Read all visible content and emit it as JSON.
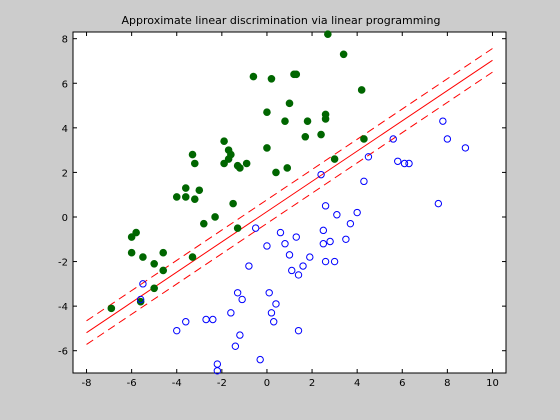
{
  "chart_data": {
    "type": "scatter",
    "title": "Approximate linear discrimination via linear programming",
    "xlabel": "",
    "ylabel": "",
    "xlim": [
      -8.6,
      10.6
    ],
    "ylim": [
      -7.0,
      8.3
    ],
    "xticks": [
      -8,
      -6,
      -4,
      -2,
      0,
      2,
      4,
      6,
      8,
      10
    ],
    "yticks": [
      -6,
      -4,
      -2,
      0,
      2,
      4,
      6,
      8
    ],
    "xtick_labels": [
      "-8",
      "-6",
      "-4",
      "-2",
      "0",
      "2",
      "4",
      "6",
      "8",
      "10"
    ],
    "ytick_labels": [
      "-6",
      "-4",
      "-2",
      "0",
      "2",
      "4",
      "6",
      "8"
    ],
    "grid": false,
    "legend": "none",
    "series": [
      {
        "marker": "filled-circle",
        "color": "#006600",
        "points": [
          [
            -6.9,
            -4.1
          ],
          [
            -5.6,
            -3.8
          ],
          [
            -5.0,
            -3.2
          ],
          [
            -6.0,
            -0.9
          ],
          [
            -5.8,
            -0.7
          ],
          [
            -6.0,
            -1.6
          ],
          [
            -5.5,
            -1.8
          ],
          [
            -5.0,
            -2.1
          ],
          [
            -4.6,
            -1.6
          ],
          [
            -4.6,
            -2.4
          ],
          [
            -4.0,
            0.9
          ],
          [
            -3.6,
            0.9
          ],
          [
            -3.6,
            1.3
          ],
          [
            -3.2,
            0.8
          ],
          [
            -3.3,
            2.8
          ],
          [
            -3.2,
            2.4
          ],
          [
            -3.0,
            1.2
          ],
          [
            -2.8,
            -0.3
          ],
          [
            -3.3,
            -1.8
          ],
          [
            -2.3,
            0.0
          ],
          [
            -1.9,
            2.4
          ],
          [
            -1.9,
            3.4
          ],
          [
            -1.7,
            2.6
          ],
          [
            -1.7,
            3.0
          ],
          [
            -1.6,
            2.8
          ],
          [
            -1.5,
            0.6
          ],
          [
            -1.3,
            2.3
          ],
          [
            -1.2,
            2.2
          ],
          [
            -1.3,
            -0.5
          ],
          [
            -0.9,
            2.4
          ],
          [
            -0.6,
            6.3
          ],
          [
            0.0,
            3.1
          ],
          [
            0.0,
            4.7
          ],
          [
            0.2,
            6.2
          ],
          [
            0.4,
            2.0
          ],
          [
            0.8,
            4.3
          ],
          [
            0.9,
            2.2
          ],
          [
            1.0,
            5.1
          ],
          [
            1.2,
            6.4
          ],
          [
            1.3,
            6.4
          ],
          [
            1.7,
            3.6
          ],
          [
            1.8,
            4.3
          ],
          [
            2.4,
            3.7
          ],
          [
            2.6,
            4.6
          ],
          [
            2.6,
            4.4
          ],
          [
            3.0,
            2.6
          ],
          [
            2.7,
            8.2
          ],
          [
            3.4,
            7.3
          ],
          [
            4.2,
            5.7
          ],
          [
            4.3,
            3.5
          ]
        ]
      },
      {
        "marker": "open-circle",
        "color": "#0000ff",
        "points": [
          [
            -5.6,
            -3.7
          ],
          [
            -5.5,
            -3.0
          ],
          [
            -4.0,
            -5.1
          ],
          [
            -3.6,
            -4.7
          ],
          [
            -2.7,
            -4.6
          ],
          [
            -2.4,
            -4.6
          ],
          [
            -2.2,
            -6.6
          ],
          [
            -2.2,
            -6.9
          ],
          [
            -1.6,
            -4.3
          ],
          [
            -1.4,
            -5.8
          ],
          [
            -1.3,
            -3.4
          ],
          [
            -1.2,
            -5.3
          ],
          [
            -1.1,
            -3.7
          ],
          [
            -0.8,
            -2.2
          ],
          [
            -0.5,
            -0.5
          ],
          [
            -0.3,
            -6.4
          ],
          [
            0.0,
            -1.3
          ],
          [
            0.1,
            -3.4
          ],
          [
            0.2,
            -4.3
          ],
          [
            0.3,
            -4.7
          ],
          [
            0.4,
            -3.9
          ],
          [
            0.6,
            -0.7
          ],
          [
            0.8,
            -1.2
          ],
          [
            1.0,
            -1.7
          ],
          [
            1.1,
            -2.4
          ],
          [
            1.3,
            -0.9
          ],
          [
            1.4,
            -2.6
          ],
          [
            1.4,
            -5.1
          ],
          [
            1.6,
            -2.2
          ],
          [
            1.9,
            -1.8
          ],
          [
            2.4,
            1.9
          ],
          [
            2.6,
            0.5
          ],
          [
            2.5,
            -0.6
          ],
          [
            2.5,
            -1.2
          ],
          [
            2.6,
            -2.0
          ],
          [
            2.8,
            -1.1
          ],
          [
            3.0,
            -2.0
          ],
          [
            3.1,
            0.1
          ],
          [
            3.5,
            -1.0
          ],
          [
            3.7,
            -0.3
          ],
          [
            4.0,
            0.2
          ],
          [
            4.3,
            1.6
          ],
          [
            4.5,
            2.7
          ],
          [
            5.6,
            3.5
          ],
          [
            5.8,
            2.5
          ],
          [
            6.1,
            2.4
          ],
          [
            6.3,
            2.4
          ],
          [
            7.6,
            0.6
          ],
          [
            7.8,
            4.3
          ],
          [
            8.0,
            3.5
          ],
          [
            8.8,
            3.1
          ]
        ]
      }
    ],
    "lines": [
      {
        "style": "solid",
        "color": "#ff0000",
        "x": [
          -8,
          10
        ],
        "y": [
          -5.19,
          7.03
        ]
      },
      {
        "style": "dashed",
        "color": "#ff0000",
        "x": [
          -8,
          10
        ],
        "y": [
          -4.66,
          7.56
        ]
      },
      {
        "style": "dashed",
        "color": "#ff0000",
        "x": [
          -8,
          10
        ],
        "y": [
          -5.72,
          6.5
        ]
      }
    ]
  }
}
